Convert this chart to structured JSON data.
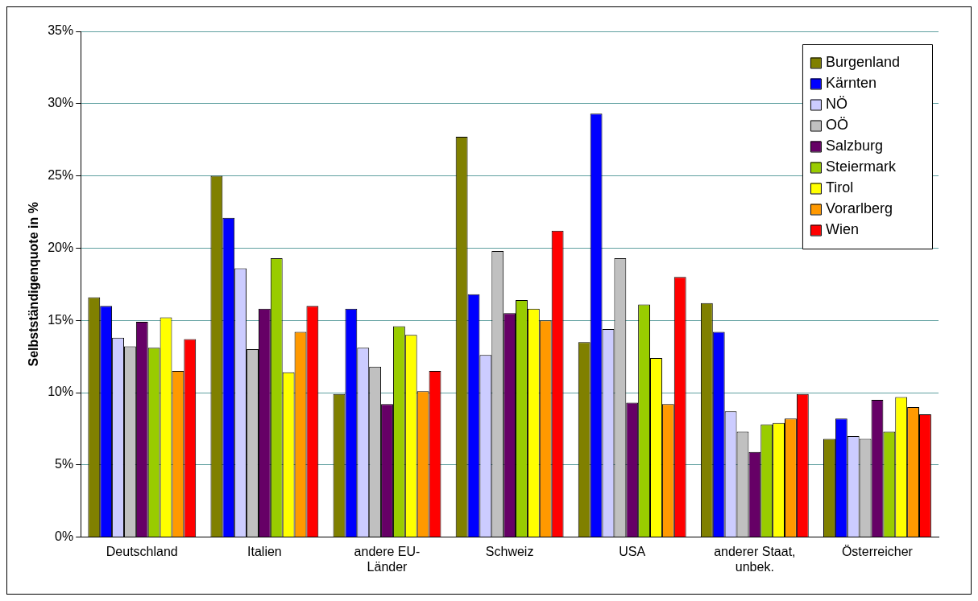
{
  "chart_data": {
    "type": "bar",
    "ylabel": "Selbstständigenquote in %",
    "categories": [
      "Deutschland",
      "Italien",
      "andere EU-Länder",
      "Schweiz",
      "USA",
      "anderer Staat, unbek.",
      "Österreicher"
    ],
    "series": [
      {
        "name": "Burgenland",
        "color": "#808000",
        "values": [
          16.6,
          25.0,
          9.9,
          27.7,
          13.5,
          16.2,
          6.8
        ]
      },
      {
        "name": "Kärnten",
        "color": "#0000ff",
        "values": [
          16.0,
          22.1,
          15.8,
          16.8,
          29.3,
          14.2,
          8.2
        ]
      },
      {
        "name": "NÖ",
        "color": "#ccccff",
        "values": [
          13.8,
          18.6,
          13.1,
          12.6,
          14.4,
          8.7,
          7.0
        ]
      },
      {
        "name": "OÖ",
        "color": "#c0c0c0",
        "values": [
          13.2,
          13.0,
          11.8,
          19.8,
          19.3,
          7.3,
          6.8
        ]
      },
      {
        "name": "Salzburg",
        "color": "#660066",
        "values": [
          14.9,
          15.8,
          9.2,
          15.5,
          9.3,
          5.9,
          9.5
        ]
      },
      {
        "name": "Steiermark",
        "color": "#99cc00",
        "values": [
          13.1,
          19.3,
          14.6,
          16.4,
          16.1,
          7.8,
          7.3
        ]
      },
      {
        "name": "Tirol",
        "color": "#ffff00",
        "values": [
          15.2,
          11.4,
          14.0,
          15.8,
          12.4,
          7.9,
          9.7
        ]
      },
      {
        "name": "Vorarlberg",
        "color": "#ff9900",
        "values": [
          11.5,
          14.2,
          10.1,
          15.0,
          9.2,
          8.2,
          9.0
        ]
      },
      {
        "name": "Wien",
        "color": "#ff0000",
        "values": [
          13.7,
          16.0,
          11.5,
          21.2,
          18.0,
          9.9,
          8.5
        ]
      }
    ],
    "ylim": [
      0,
      35
    ],
    "yticks": [
      {
        "value": 0,
        "label": "0%"
      },
      {
        "value": 5,
        "label": "5%"
      },
      {
        "value": 10,
        "label": "10%"
      },
      {
        "value": 15,
        "label": "15%"
      },
      {
        "value": 20,
        "label": "20%"
      },
      {
        "value": 25,
        "label": "25%"
      },
      {
        "value": 30,
        "label": "30%"
      },
      {
        "value": 35,
        "label": "35%"
      }
    ],
    "grid": "y",
    "legend": "top right"
  }
}
